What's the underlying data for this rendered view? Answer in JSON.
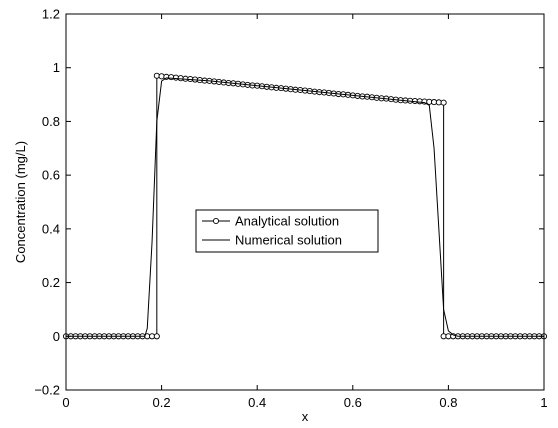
{
  "chart_data": {
    "type": "line",
    "title": "",
    "xlabel": "x",
    "ylabel": "Concentration (mg/L)",
    "xlim": [
      0,
      1
    ],
    "ylim": [
      -0.2,
      1.2
    ],
    "xticks": [
      0,
      0.2,
      0.4,
      0.6,
      0.8,
      1
    ],
    "xtick_labels": [
      "0",
      "0.2",
      "0.4",
      "0.6",
      "0.8",
      "1"
    ],
    "yticks": [
      -0.2,
      0,
      0.2,
      0.4,
      0.6,
      0.8,
      1,
      1.2
    ],
    "ytick_labels": [
      "−0.2",
      "0",
      "0.2",
      "0.4",
      "0.6",
      "0.8",
      "1",
      "1.2"
    ],
    "grid": false,
    "legend_position": "center-left",
    "series": [
      {
        "name": "Analytical solution",
        "style": "line-circle-markers",
        "color": "#000000",
        "x": [
          0,
          0.01,
          0.02,
          0.03,
          0.04,
          0.05,
          0.06,
          0.07,
          0.08,
          0.09,
          0.1,
          0.11,
          0.12,
          0.13,
          0.14,
          0.15,
          0.16,
          0.17,
          0.18,
          0.19,
          0.19,
          0.2,
          0.21,
          0.22,
          0.23,
          0.24,
          0.25,
          0.26,
          0.27,
          0.28,
          0.29,
          0.3,
          0.31,
          0.32,
          0.33,
          0.34,
          0.35,
          0.36,
          0.37,
          0.38,
          0.39,
          0.4,
          0.41,
          0.42,
          0.43,
          0.44,
          0.45,
          0.46,
          0.47,
          0.48,
          0.49,
          0.5,
          0.51,
          0.52,
          0.53,
          0.54,
          0.55,
          0.56,
          0.57,
          0.58,
          0.59,
          0.6,
          0.61,
          0.62,
          0.63,
          0.64,
          0.65,
          0.66,
          0.67,
          0.68,
          0.69,
          0.7,
          0.71,
          0.72,
          0.73,
          0.74,
          0.75,
          0.76,
          0.77,
          0.78,
          0.79,
          0.79,
          0.8,
          0.81,
          0.82,
          0.83,
          0.84,
          0.85,
          0.86,
          0.87,
          0.88,
          0.89,
          0.9,
          0.91,
          0.92,
          0.93,
          0.94,
          0.95,
          0.96,
          0.97,
          0.98,
          0.99,
          1.0
        ],
        "y": [
          0,
          0,
          0,
          0,
          0,
          0,
          0,
          0,
          0,
          0,
          0,
          0,
          0,
          0,
          0,
          0,
          0,
          0,
          0,
          0,
          0.97,
          0.968,
          0.966,
          0.965,
          0.963,
          0.961,
          0.959,
          0.958,
          0.956,
          0.954,
          0.952,
          0.951,
          0.949,
          0.947,
          0.945,
          0.943,
          0.942,
          0.94,
          0.938,
          0.936,
          0.934,
          0.933,
          0.931,
          0.929,
          0.927,
          0.925,
          0.924,
          0.922,
          0.92,
          0.918,
          0.917,
          0.915,
          0.913,
          0.911,
          0.909,
          0.908,
          0.906,
          0.904,
          0.902,
          0.901,
          0.899,
          0.897,
          0.895,
          0.893,
          0.892,
          0.89,
          0.888,
          0.886,
          0.885,
          0.883,
          0.881,
          0.879,
          0.878,
          0.877,
          0.876,
          0.875,
          0.874,
          0.873,
          0.872,
          0.871,
          0.87,
          0,
          0,
          0,
          0,
          0,
          0,
          0,
          0,
          0,
          0,
          0,
          0,
          0,
          0,
          0,
          0,
          0,
          0,
          0,
          0,
          0,
          0
        ]
      },
      {
        "name": "Numerical solution",
        "style": "line",
        "color": "#000000",
        "x": [
          0,
          0.165,
          0.17,
          0.18,
          0.19,
          0.2,
          0.21,
          0.3,
          0.4,
          0.5,
          0.6,
          0.7,
          0.75,
          0.76,
          0.77,
          0.78,
          0.79,
          0.8,
          0.81,
          0.82,
          1.0
        ],
        "y": [
          0,
          0,
          0.03,
          0.35,
          0.8,
          0.95,
          0.962,
          0.951,
          0.933,
          0.915,
          0.897,
          0.879,
          0.87,
          0.86,
          0.7,
          0.4,
          0.1,
          0.02,
          0.005,
          0,
          0
        ]
      }
    ]
  }
}
